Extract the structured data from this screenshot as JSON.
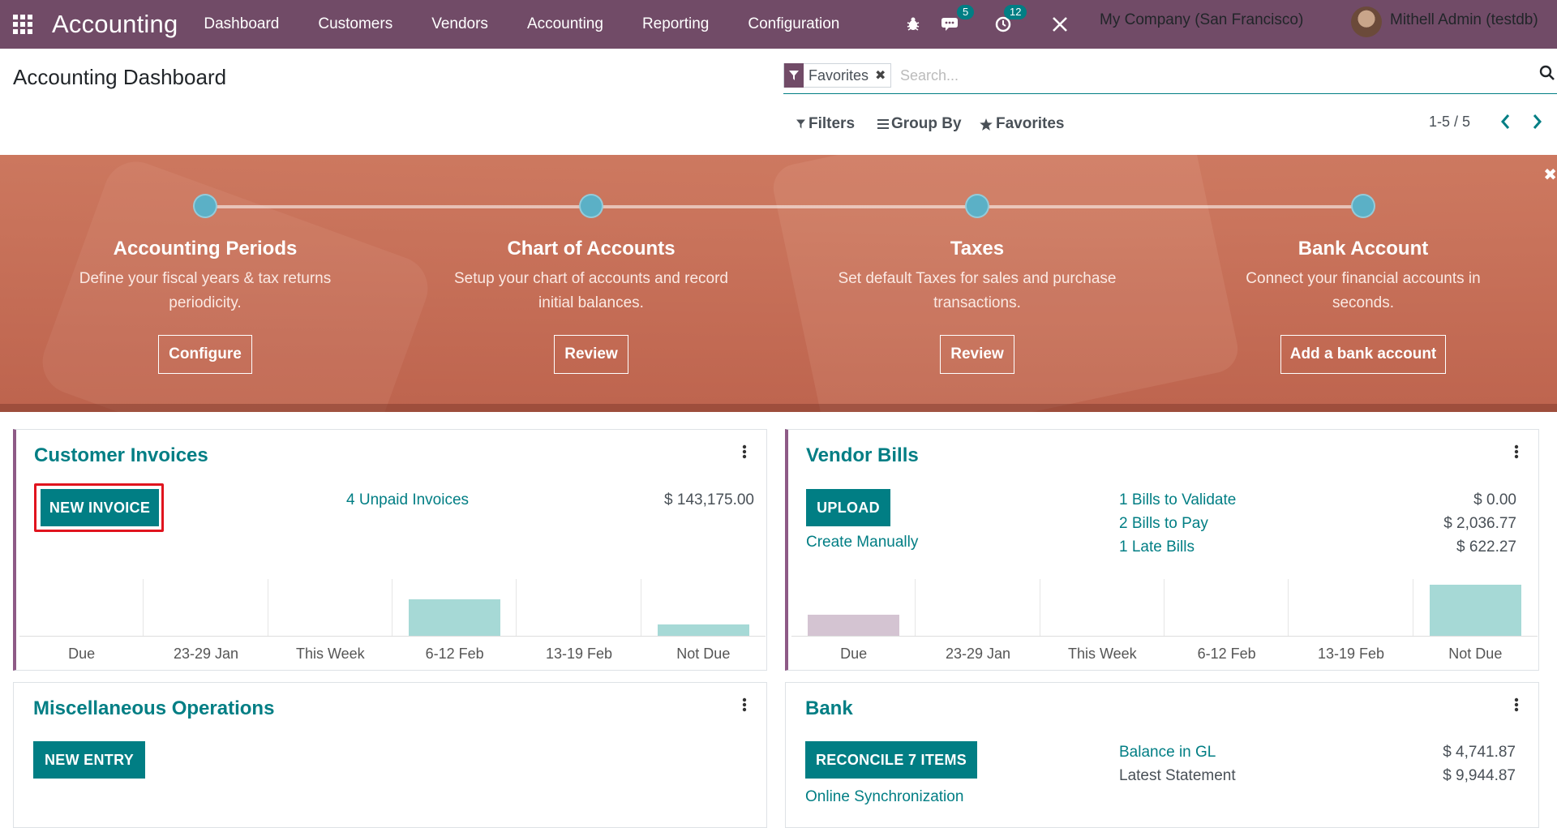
{
  "nav": {
    "brand": "Accounting",
    "menu": [
      "Dashboard",
      "Customers",
      "Vendors",
      "Accounting",
      "Reporting",
      "Configuration"
    ],
    "messages_count": "5",
    "activities_count": "12",
    "company": "My Company (San Francisco)",
    "user": "Mithell Admin (testdb)"
  },
  "control_panel": {
    "title": "Accounting Dashboard",
    "facet": "Favorites",
    "search_placeholder": "Search...",
    "filters": "Filters",
    "group_by": "Group By",
    "favorites": "Favorites",
    "pager": "1-5 / 5"
  },
  "onboarding": {
    "steps": [
      {
        "title": "Accounting Periods",
        "description": "Define your fiscal years & tax returns periodicity.",
        "button": "Configure"
      },
      {
        "title": "Chart of Accounts",
        "description": "Setup your chart of accounts and record initial balances.",
        "button": "Review"
      },
      {
        "title": "Taxes",
        "description": "Set default Taxes for sales and purchase transactions.",
        "button": "Review"
      },
      {
        "title": "Bank Account",
        "description": "Connect your financial accounts in seconds.",
        "button": "Add a bank account"
      }
    ]
  },
  "customer_invoices": {
    "title": "Customer Invoices",
    "button": "NEW INVOICE",
    "unpaid_link": "4 Unpaid Invoices",
    "unpaid_amount": "$ 143,175.00",
    "chart": {
      "categories": [
        "Due",
        "23-29 Jan",
        "This Week",
        "6-12 Feb",
        "13-19 Feb",
        "Not Due"
      ],
      "values": [
        0,
        0,
        0,
        0.72,
        0,
        0.23
      ],
      "bar_colors": [
        "#a6d9d6",
        "#a6d9d6",
        "#a6d9d6",
        "#a6d9d6",
        "#a6d9d6",
        "#a6d9d6"
      ]
    }
  },
  "vendor_bills": {
    "title": "Vendor Bills",
    "button": "UPLOAD",
    "create_manually": "Create Manually",
    "rows": [
      {
        "label": "1 Bills to Validate",
        "amount": "$ 0.00"
      },
      {
        "label": "2 Bills to Pay",
        "amount": "$ 2,036.77"
      },
      {
        "label": "1 Late Bills",
        "amount": "$ 622.27"
      }
    ],
    "chart": {
      "categories": [
        "Due",
        "23-29 Jan",
        "This Week",
        "6-12 Feb",
        "13-19 Feb",
        "Not Due"
      ],
      "values": [
        0.41,
        0,
        0,
        0,
        0,
        1.0
      ],
      "bar_colors": [
        "#d4c4d2",
        "#a6d9d6",
        "#a6d9d6",
        "#a6d9d6",
        "#a6d9d6",
        "#a6d9d6"
      ]
    }
  },
  "misc_operations": {
    "title": "Miscellaneous Operations",
    "button": "NEW ENTRY"
  },
  "bank": {
    "title": "Bank",
    "button": "RECONCILE 7 ITEMS",
    "online_sync": "Online Synchronization",
    "rows": [
      {
        "label": "Balance in GL",
        "amount": "$ 4,741.87"
      },
      {
        "label": "Latest Statement",
        "amount": "$ 9,944.87"
      }
    ]
  },
  "colors": {
    "nav": "#714B67",
    "primary": "#017e84",
    "highlight": "#e0141e"
  }
}
